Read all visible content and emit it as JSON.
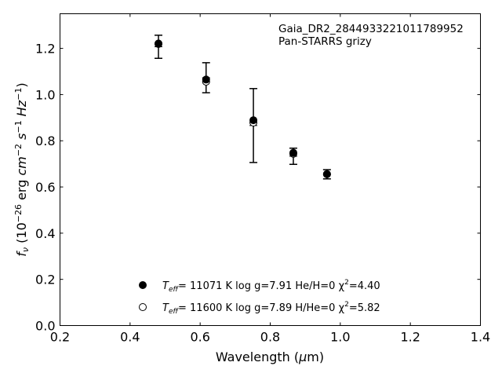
{
  "chart_data": {
    "type": "scatter",
    "annotation_lines": [
      "Gaia_DR2_2844933221011789952",
      "Pan-STARRS grizy"
    ],
    "xlabel": "Wavelength (μm)",
    "ylabel": "f_ν (10^-26 erg cm^-2 s^-1 Hz^-1)",
    "xlim": [
      0.2,
      1.4
    ],
    "ylim": [
      0.0,
      1.35
    ],
    "xticks": [
      0.2,
      0.4,
      0.6,
      0.8,
      1.0,
      1.2,
      1.4
    ],
    "yticks": [
      0.0,
      0.2,
      0.4,
      0.6,
      0.8,
      1.0,
      1.2
    ],
    "xtick_labels": [
      "0.2",
      "0.4",
      "0.6",
      "0.8",
      "1.0",
      "1.2",
      "1.4"
    ],
    "ytick_labels": [
      "0.0",
      "0.2",
      "0.4",
      "0.6",
      "0.8",
      "1.0",
      "1.2"
    ],
    "grid": false,
    "legend_position": "bottom-center",
    "observed": {
      "x": [
        0.481,
        0.617,
        0.752,
        0.866,
        0.962
      ],
      "y": [
        1.207,
        1.073,
        0.866,
        0.733,
        0.655
      ],
      "yerr": [
        0.05,
        0.065,
        0.16,
        0.035,
        0.02
      ],
      "color": "#000000"
    },
    "series": [
      {
        "marker": "filled-circle",
        "label_parts": [
          "T",
          "eff",
          "= 11071 K  log g=7.91  He/H=0  χ",
          "2",
          "=4.40"
        ],
        "x": [
          0.481,
          0.617,
          0.752,
          0.866,
          0.962
        ],
        "y": [
          1.219,
          1.065,
          0.889,
          0.748,
          0.655
        ]
      },
      {
        "marker": "open-circle",
        "label_parts": [
          "T",
          "eff",
          "= 11600 K  log g=7.89  H/He=0  χ",
          "2",
          "=5.82"
        ],
        "x": [
          0.481,
          0.617,
          0.752,
          0.866,
          0.962
        ],
        "y": [
          1.221,
          1.056,
          0.879,
          0.744,
          0.656
        ]
      }
    ]
  }
}
